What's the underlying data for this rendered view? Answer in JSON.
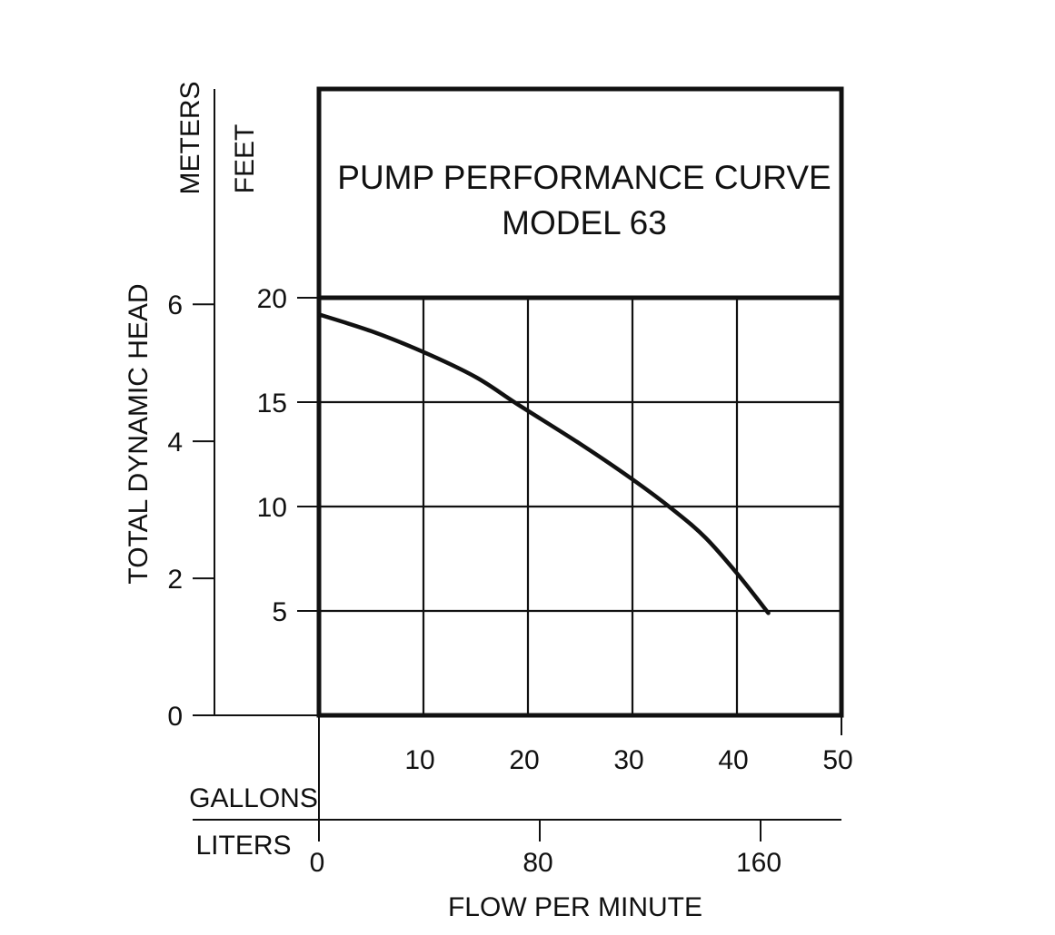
{
  "chart_data": {
    "type": "line",
    "title": "PUMP PERFORMANCE CURVE",
    "subtitle": "MODEL 63",
    "ylabel": "TOTAL DYNAMIC HEAD",
    "xlabel": "FLOW PER MINUTE",
    "y_primary": {
      "unit": "FEET",
      "range": [
        0,
        20
      ],
      "ticks": [
        5,
        10,
        15,
        20
      ],
      "tick_labels": [
        "5",
        "10",
        "15",
        "20"
      ]
    },
    "y_secondary": {
      "unit": "METERS",
      "range": [
        0,
        6.096
      ],
      "ticks": [
        0,
        2,
        4,
        6
      ],
      "tick_labels": [
        "0",
        "2",
        "4",
        "6"
      ]
    },
    "x_primary": {
      "unit": "GALLONS",
      "range": [
        0,
        50
      ],
      "ticks": [
        10,
        20,
        30,
        40,
        50
      ],
      "tick_labels": [
        "10",
        "20",
        "30",
        "40",
        "50"
      ]
    },
    "x_secondary": {
      "unit": "LITERS",
      "range": [
        0,
        189.3
      ],
      "ticks": [
        0,
        80,
        160
      ],
      "tick_labels": [
        "0",
        "80",
        "160"
      ]
    },
    "grid": true,
    "series": [
      {
        "x": [
          0,
          5,
          10,
          15,
          19,
          25,
          30,
          34,
          37,
          40,
          43
        ],
        "y": [
          19.2,
          18.4,
          17.4,
          16.2,
          14.9,
          13.0,
          11.3,
          9.8,
          8.5,
          6.8,
          4.9
        ]
      }
    ]
  },
  "colors": {
    "ink": "#111111",
    "background": "#ffffff"
  }
}
